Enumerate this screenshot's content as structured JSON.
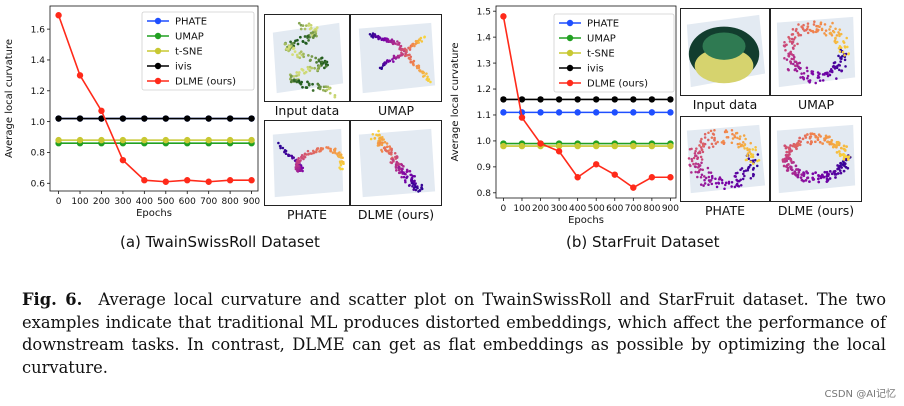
{
  "colors": {
    "phate": "#1f4fff",
    "umap": "#22a022",
    "tsne": "#c8c832",
    "ivis": "#000000",
    "dlme": "#ff2a1a"
  },
  "chart_data": [
    {
      "type": "line",
      "ylabel": "Average local curvature",
      "xlabel": "Epochs",
      "xlim": [
        -40,
        930
      ],
      "ylim": [
        0.55,
        1.75
      ],
      "xticks": [
        0,
        100,
        200,
        300,
        400,
        500,
        600,
        700,
        800,
        900
      ],
      "yticks": [
        0.6,
        0.8,
        1.0,
        1.2,
        1.4,
        1.6
      ],
      "ytick_labels": [
        "0.6",
        "0.8",
        "1.0",
        "1.2",
        "1.4",
        "1.6"
      ],
      "legend": "top-left",
      "x": [
        0,
        100,
        200,
        300,
        400,
        500,
        600,
        700,
        800,
        900
      ],
      "series": [
        {
          "name": "PHATE",
          "color": "#1f4fff",
          "values": [
            1.02,
            1.02,
            1.02,
            1.02,
            1.02,
            1.02,
            1.02,
            1.02,
            1.02,
            1.02
          ]
        },
        {
          "name": "UMAP",
          "color": "#22a022",
          "values": [
            0.86,
            0.86,
            0.86,
            0.86,
            0.86,
            0.86,
            0.86,
            0.86,
            0.86,
            0.86
          ]
        },
        {
          "name": "t-SNE",
          "color": "#c8c832",
          "values": [
            0.88,
            0.88,
            0.88,
            0.88,
            0.88,
            0.88,
            0.88,
            0.88,
            0.88,
            0.88
          ]
        },
        {
          "name": "ivis",
          "color": "#000000",
          "values": [
            1.02,
            1.02,
            1.02,
            1.02,
            1.02,
            1.02,
            1.02,
            1.02,
            1.02,
            1.02
          ]
        },
        {
          "name": "DLME (ours)",
          "color": "#ff2a1a",
          "values": [
            1.69,
            1.3,
            1.07,
            0.75,
            0.62,
            0.61,
            0.62,
            0.61,
            0.62,
            0.62
          ]
        }
      ],
      "subcaption": "(a) TwainSwissRoll Dataset"
    },
    {
      "type": "line",
      "ylabel": "Average local curvature",
      "xlabel": "Epochs",
      "xlim": [
        -40,
        930
      ],
      "ylim": [
        0.78,
        1.52
      ],
      "xticks": [
        0,
        100,
        200,
        300,
        400,
        500,
        600,
        700,
        800,
        900
      ],
      "yticks": [
        0.8,
        0.9,
        1.0,
        1.1,
        1.2,
        1.3,
        1.4,
        1.5
      ],
      "ytick_labels": [
        "0.8",
        "0.9",
        "1.0",
        "1.1",
        "1.2",
        "1.3",
        "1.4",
        "1.5"
      ],
      "legend": "top-right",
      "x": [
        0,
        100,
        200,
        300,
        400,
        500,
        600,
        700,
        800,
        900
      ],
      "series": [
        {
          "name": "PHATE",
          "color": "#1f4fff",
          "values": [
            1.11,
            1.11,
            1.11,
            1.11,
            1.11,
            1.11,
            1.11,
            1.11,
            1.11,
            1.11
          ]
        },
        {
          "name": "UMAP",
          "color": "#22a022",
          "values": [
            0.99,
            0.99,
            0.99,
            0.99,
            0.99,
            0.99,
            0.99,
            0.99,
            0.99,
            0.99
          ]
        },
        {
          "name": "t-SNE",
          "color": "#c8c832",
          "values": [
            0.98,
            0.98,
            0.98,
            0.98,
            0.98,
            0.98,
            0.98,
            0.98,
            0.98,
            0.98
          ]
        },
        {
          "name": "ivis",
          "color": "#000000",
          "values": [
            1.16,
            1.16,
            1.16,
            1.16,
            1.16,
            1.16,
            1.16,
            1.16,
            1.16,
            1.16
          ]
        },
        {
          "name": "DLME (ours)",
          "color": "#ff2a1a",
          "values": [
            1.48,
            1.09,
            0.99,
            0.96,
            0.86,
            0.91,
            0.87,
            0.82,
            0.86,
            0.86
          ]
        }
      ],
      "subcaption": "(b) StarFruit Dataset"
    }
  ],
  "thumbnails_a": {
    "input": "Input data",
    "umap": "UMAP",
    "phate": "PHATE",
    "dlme": "DLME (ours)"
  },
  "thumbnails_b": {
    "input": "Input data",
    "umap": "UMAP",
    "phate": "PHATE",
    "dlme": "DLME (ours)"
  },
  "caption": {
    "label": "Fig. 6.",
    "text": "Average local curvature and scatter plot on TwainSwissRoll and StarFruit dataset. The two examples indicate that traditional ML produces distorted embeddings, which affect the performance of downstream tasks. In contrast, DLME can get as flat embeddings as possible by optimizing the local curvature."
  },
  "watermark": "CSDN @AI记忆"
}
